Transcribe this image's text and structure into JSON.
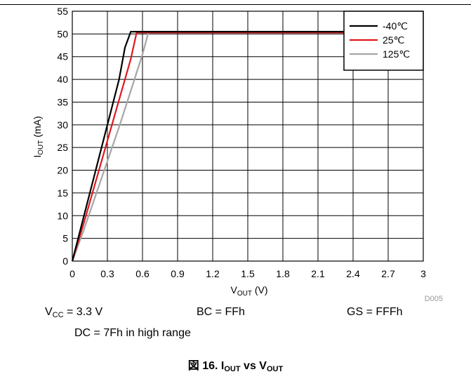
{
  "chart_data": {
    "type": "line",
    "xlabel_main": "V",
    "xlabel_sub": "OUT",
    "xlabel_unit": " (V)",
    "ylabel_main": "I",
    "ylabel_sub": "OUT",
    "ylabel_unit": " (mA)",
    "xlim": [
      0,
      3
    ],
    "ylim": [
      0,
      55
    ],
    "x_ticks": [
      "0",
      "0.3",
      "0.6",
      "0.9",
      "1.2",
      "1.5",
      "1.8",
      "2.1",
      "2.4",
      "2.7",
      "3"
    ],
    "y_ticks": [
      "0",
      "5",
      "10",
      "15",
      "20",
      "25",
      "30",
      "35",
      "40",
      "45",
      "50",
      "55"
    ],
    "grid": true,
    "legend_position": "top-right",
    "series": [
      {
        "name": "-40℃",
        "color": "#000000",
        "points": [
          [
            0,
            0
          ],
          [
            0.1,
            10
          ],
          [
            0.2,
            20
          ],
          [
            0.3,
            30
          ],
          [
            0.4,
            40
          ],
          [
            0.45,
            47
          ],
          [
            0.5,
            50.5
          ],
          [
            3.0,
            50.5
          ]
        ]
      },
      {
        "name": "25℃",
        "color": "#e0191b",
        "points": [
          [
            0,
            0
          ],
          [
            0.1,
            8.5
          ],
          [
            0.2,
            17.5
          ],
          [
            0.3,
            26.5
          ],
          [
            0.4,
            35.5
          ],
          [
            0.5,
            44.5
          ],
          [
            0.55,
            50.3
          ],
          [
            3.0,
            50.3
          ]
        ]
      },
      {
        "name": "125℃",
        "color": "#a6a6a6",
        "points": [
          [
            0,
            0
          ],
          [
            0.1,
            7
          ],
          [
            0.2,
            14.5
          ],
          [
            0.3,
            22
          ],
          [
            0.4,
            29.5
          ],
          [
            0.5,
            37.5
          ],
          [
            0.6,
            45.5
          ],
          [
            0.65,
            50.3
          ],
          [
            3.0,
            50.3
          ]
        ]
      }
    ]
  },
  "ref_code": "D005",
  "conditions": {
    "vcc_main": "V",
    "vcc_sub": "CC",
    "vcc_value": " = 3.3 V",
    "bc": "BC = FFh",
    "gs": "GS = FFFh",
    "dc": "DC = 7Fh in high range"
  },
  "caption": {
    "prefix": "図 16.  I",
    "sub1": "OUT",
    "mid": " vs V",
    "sub2": "OUT"
  }
}
